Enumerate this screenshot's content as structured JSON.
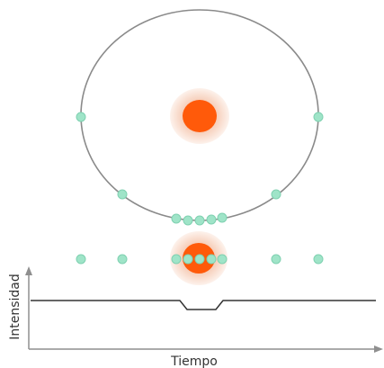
{
  "axes": {
    "y_label": "Intensidad",
    "x_label": "Tiempo"
  },
  "colors": {
    "orbit": "#8a8a8a",
    "planet": "#9fe4c8",
    "planet_stroke": "#7fd1b1",
    "star": "#ff5a0a",
    "star_halo": "#f8ddd0",
    "axis": "#8f8f8f",
    "light_curve": "#333333"
  },
  "icons": {
    "star": "star-icon",
    "planet": "planet-icon"
  },
  "chart_data": {
    "type": "line",
    "series": [
      {
        "values": [
          1,
          1,
          0.9,
          0.9,
          1,
          1
        ]
      }
    ]
  }
}
